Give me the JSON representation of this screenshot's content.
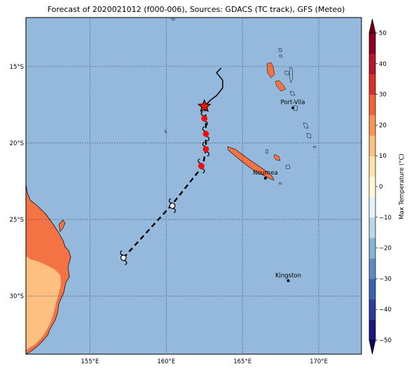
{
  "title": "Forecast of 2020021012 (f000-006), Sources: GDACS (TC track), GFS (Meteo)",
  "map": {
    "lon_min": 150.8,
    "lon_max": 172.8,
    "lat_min": -33.8,
    "lat_max": -11.8,
    "ocean_color": "#94b9dc",
    "gridline_color": "#334466",
    "lon_ticks": [
      {
        "value": 155,
        "label": "155°E"
      },
      {
        "value": 160,
        "label": "160°E"
      },
      {
        "value": 165,
        "label": "165°E"
      },
      {
        "value": 170,
        "label": "170°E"
      }
    ],
    "lat_ticks": [
      {
        "value": -15,
        "label": "15°S"
      },
      {
        "value": -20,
        "label": "20°S"
      },
      {
        "value": -25,
        "label": "25°S"
      },
      {
        "value": -30,
        "label": "30°S"
      }
    ],
    "cities": [
      {
        "name": "Port-Vila",
        "lon": 168.3,
        "lat": -17.7
      },
      {
        "name": "Noumea",
        "lon": 166.5,
        "lat": -22.3
      },
      {
        "name": "Kingston",
        "lon": 168.0,
        "lat": -29.0
      }
    ],
    "land_colors": {
      "cool": "#fdc080",
      "warm": "#f47345"
    },
    "observed_track": [
      [
        163.6,
        -15.1
      ],
      [
        163.3,
        -15.4
      ],
      [
        163.7,
        -15.9
      ],
      [
        163.7,
        -16.4
      ],
      [
        163.3,
        -16.9
      ],
      [
        162.9,
        -17.2
      ],
      [
        162.5,
        -17.6
      ]
    ],
    "forecast_track": [
      [
        162.5,
        -17.6
      ],
      [
        162.6,
        -18.4
      ],
      [
        162.6,
        -19.4
      ],
      [
        162.6,
        -20.4
      ],
      [
        162.4,
        -21.5
      ],
      [
        160.4,
        -24.0
      ],
      [
        157.2,
        -27.5
      ]
    ],
    "storm_current": {
      "lon": 162.5,
      "lat": -17.6,
      "color": "#ee1111"
    },
    "storm_markers": [
      {
        "lon": 162.5,
        "lat": -18.4,
        "color": "#ee1111"
      },
      {
        "lon": 162.6,
        "lat": -19.4,
        "color": "#ee1111"
      },
      {
        "lon": 162.6,
        "lat": -20.4,
        "color": "#ee1111"
      },
      {
        "lon": 162.3,
        "lat": -21.5,
        "color": "#ee1111"
      },
      {
        "lon": 160.4,
        "lat": -24.1,
        "color": "#ffffff"
      },
      {
        "lon": 157.2,
        "lat": -27.5,
        "color": "#ffffff"
      }
    ]
  },
  "colorbar": {
    "label": "Max Temperature (°C)",
    "min": -50,
    "max": 50,
    "ticks": [
      "50",
      "40",
      "30",
      "20",
      "10",
      "0",
      "−10",
      "−20",
      "−30",
      "−40",
      "−50"
    ],
    "colors": [
      "#1a1a7e",
      "#2a3d9a",
      "#3c64ae",
      "#5b8cc4",
      "#86b2d6",
      "#b9d9e9",
      "#e3f3f8",
      "#fff8d6",
      "#fee3a6",
      "#fdc080",
      "#f89556",
      "#ee6539",
      "#d73027",
      "#b2182b",
      "#8b0020"
    ]
  }
}
